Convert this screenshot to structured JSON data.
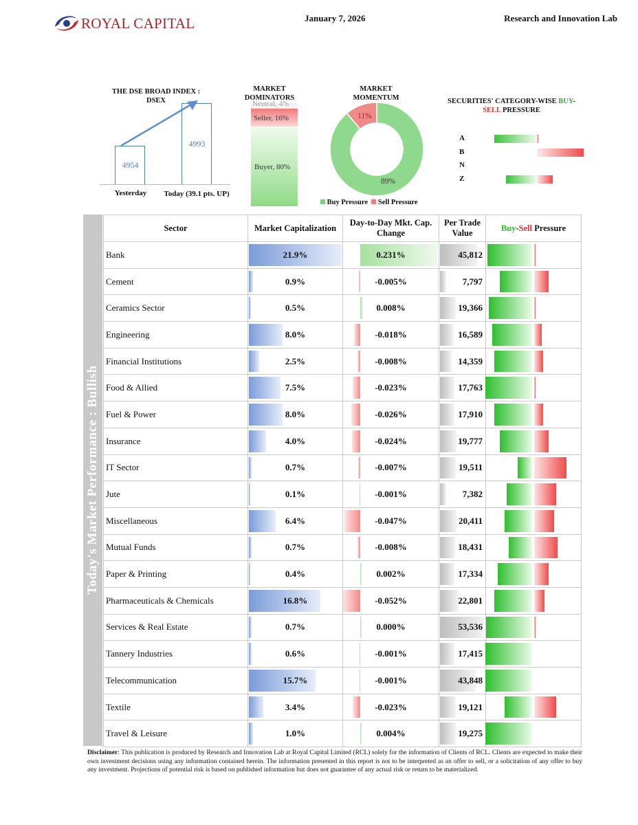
{
  "header": {
    "company": "ROYAL CAPITAL",
    "date": "January 7, 2026",
    "lab": "Research and Innovation Lab"
  },
  "dsex": {
    "title": "THE DSE BROAD INDEX : DSEX",
    "yesterday_value": "4954",
    "today_value": "4993",
    "yesterday_label": "Yesterday",
    "today_label": "Today (39.1 pts. UP)",
    "yesterday": 4954,
    "today": 4993
  },
  "dominators": {
    "title": "MARKET DOMINATORS",
    "neutral": "Neutral, 4%",
    "seller": "Seller, 16%",
    "buyer": "Buyer, 80%",
    "neutral_pct": 4,
    "seller_pct": 16,
    "buyer_pct": 80
  },
  "momentum": {
    "title": "MARKET MOMENTUM",
    "buy_label": "89%",
    "sell_label": "11%",
    "buy": 89,
    "sell": 11,
    "legend_buy": "Buy Pressure",
    "legend_sell": "Sell Pressure"
  },
  "category": {
    "title_pre": "SECURITIES' CATEGORY-WISE ",
    "title_buy": "BUY",
    "title_dash": "-",
    "title_sell": "SELL",
    "title_post": " PRESSURE",
    "rows": [
      {
        "name": "A",
        "buy": 0.58,
        "sell": 0.02
      },
      {
        "name": "B",
        "buy": 0,
        "sell": 0.65
      },
      {
        "name": "N",
        "buy": 0,
        "sell": 0
      },
      {
        "name": "Z",
        "buy": 0.42,
        "sell": 0.22
      }
    ]
  },
  "table": {
    "headers": {
      "sector": "Sector",
      "mcap": "Market Capitalization",
      "change": "Day-to-Day Mkt. Cap. Change",
      "ptv": "Per Trade Value",
      "bsp_buy": "Buy",
      "bsp_dash": "-",
      "bsp_sell": "Sell",
      "bsp_post": " Pressure"
    },
    "side_label": "Today's Market Performance : Bullish",
    "rows": [
      {
        "sector": "Bank",
        "mcap": "21.9%",
        "change": "0.231%",
        "ptv": "45,812",
        "mcap_v": 21.9,
        "change_v": 0.231,
        "ptv_v": 45812,
        "buy": 0.62,
        "sell": 0.02
      },
      {
        "sector": "Cement",
        "mcap": "0.9%",
        "change": "-0.005%",
        "ptv": "7,797",
        "mcap_v": 0.9,
        "change_v": -0.005,
        "ptv_v": 7797,
        "buy": 0.45,
        "sell": 0.2
      },
      {
        "sector": "Ceramics Sector",
        "mcap": "0.5%",
        "change": "0.008%",
        "ptv": "19,366",
        "mcap_v": 0.5,
        "change_v": 0.008,
        "ptv_v": 19366,
        "buy": 0.6,
        "sell": 0.02
      },
      {
        "sector": "Engineering",
        "mcap": "8.0%",
        "change": "-0.018%",
        "ptv": "16,589",
        "mcap_v": 8.0,
        "change_v": -0.018,
        "ptv_v": 16589,
        "buy": 0.55,
        "sell": 0.1
      },
      {
        "sector": "Financial Institutions",
        "mcap": "2.5%",
        "change": "-0.008%",
        "ptv": "14,359",
        "mcap_v": 2.5,
        "change_v": -0.008,
        "ptv_v": 14359,
        "buy": 0.52,
        "sell": 0.12
      },
      {
        "sector": "Food & Allied",
        "mcap": "7.5%",
        "change": "-0.023%",
        "ptv": "17,763",
        "mcap_v": 7.5,
        "change_v": -0.023,
        "ptv_v": 17763,
        "buy": 0.65,
        "sell": 0.02
      },
      {
        "sector": "Fuel & Power",
        "mcap": "8.0%",
        "change": "-0.026%",
        "ptv": "17,910",
        "mcap_v": 8.0,
        "change_v": -0.026,
        "ptv_v": 17910,
        "buy": 0.52,
        "sell": 0.12
      },
      {
        "sector": "Insurance",
        "mcap": "4.0%",
        "change": "-0.024%",
        "ptv": "19,777",
        "mcap_v": 4.0,
        "change_v": -0.024,
        "ptv_v": 19777,
        "buy": 0.45,
        "sell": 0.2
      },
      {
        "sector": "IT Sector",
        "mcap": "0.7%",
        "change": "-0.007%",
        "ptv": "19,511",
        "mcap_v": 0.7,
        "change_v": -0.007,
        "ptv_v": 19511,
        "buy": 0.2,
        "sell": 0.45
      },
      {
        "sector": "Jute",
        "mcap": "0.1%",
        "change": "-0.001%",
        "ptv": "7,382",
        "mcap_v": 0.1,
        "change_v": -0.001,
        "ptv_v": 7382,
        "buy": 0.35,
        "sell": 0.3
      },
      {
        "sector": "Miscellaneous",
        "mcap": "6.4%",
        "change": "-0.047%",
        "ptv": "20,411",
        "mcap_v": 6.4,
        "change_v": -0.047,
        "ptv_v": 20411,
        "buy": 0.38,
        "sell": 0.28
      },
      {
        "sector": "Mutual Funds",
        "mcap": "0.7%",
        "change": "-0.008%",
        "ptv": "18,431",
        "mcap_v": 0.7,
        "change_v": -0.008,
        "ptv_v": 18431,
        "buy": 0.32,
        "sell": 0.32
      },
      {
        "sector": "Paper & Printing",
        "mcap": "0.4%",
        "change": "0.002%",
        "ptv": "17,334",
        "mcap_v": 0.4,
        "change_v": 0.002,
        "ptv_v": 17334,
        "buy": 0.48,
        "sell": 0.2
      },
      {
        "sector": "Pharmaceuticals & Chemicals",
        "mcap": "16.8%",
        "change": "-0.052%",
        "ptv": "22,801",
        "mcap_v": 16.8,
        "change_v": -0.052,
        "ptv_v": 22801,
        "buy": 0.52,
        "sell": 0.14
      },
      {
        "sector": "Services & Real Estate",
        "mcap": "0.7%",
        "change": "0.000%",
        "ptv": "53,536",
        "mcap_v": 0.7,
        "change_v": 0.0,
        "ptv_v": 53536,
        "buy": 0.64,
        "sell": 0.02
      },
      {
        "sector": "Tannery Industries",
        "mcap": "0.6%",
        "change": "-0.001%",
        "ptv": "17,415",
        "mcap_v": 0.6,
        "change_v": -0.001,
        "ptv_v": 17415,
        "buy": 0.65,
        "sell": 0
      },
      {
        "sector": "Telecommunication",
        "mcap": "15.7%",
        "change": "-0.001%",
        "ptv": "43,848",
        "mcap_v": 15.7,
        "change_v": -0.001,
        "ptv_v": 43848,
        "buy": 0.65,
        "sell": 0
      },
      {
        "sector": "Textile",
        "mcap": "3.4%",
        "change": "-0.023%",
        "ptv": "19,121",
        "mcap_v": 3.4,
        "change_v": -0.023,
        "ptv_v": 19121,
        "buy": 0.38,
        "sell": 0.3
      },
      {
        "sector": "Travel & Leisure",
        "mcap": "1.0%",
        "change": "0.004%",
        "ptv": "19,275",
        "mcap_v": 1.0,
        "change_v": 0.004,
        "ptv_v": 19275,
        "buy": 0.65,
        "sell": 0
      }
    ]
  },
  "disclaimer": {
    "label": "Disclaimer",
    "text": ": This publication is produced by Research and Innovation Lab at Royal Capital Limited (RCL) solely for the information of Clients of RCL. Clients are expected to make their own investment decisions using any information contained herein. The information presented in this report is not to be interpreted as an offer to sell, or a solicitation of any offer to buy any investment. Projections of potential risk is based on published information but does not guarantee of any actual risk or return to be materialized."
  }
}
